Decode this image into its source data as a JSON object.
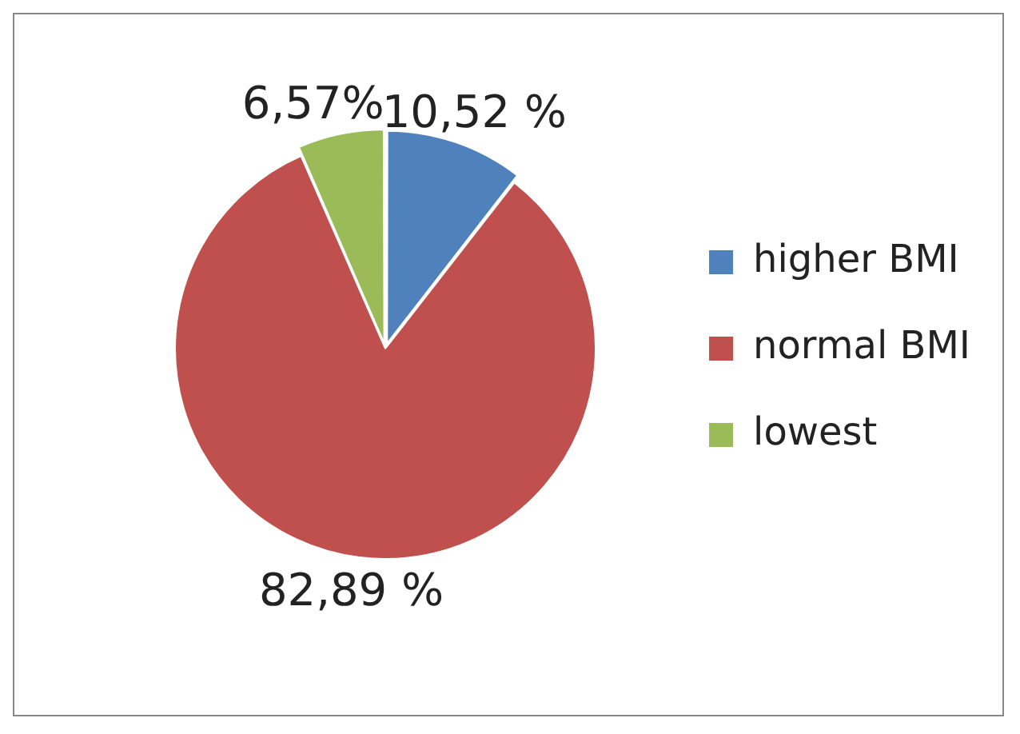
{
  "chart_data": {
    "type": "pie",
    "categories": [
      "higher BMI",
      "normal BMI",
      "lowest"
    ],
    "values": [
      10.52,
      82.89,
      6.57
    ],
    "colors": [
      "#4f81bd",
      "#c0504d",
      "#9bbb59"
    ],
    "value_labels": [
      "10,52 %",
      "82,89 %",
      "6,57%"
    ],
    "legend": "right"
  }
}
